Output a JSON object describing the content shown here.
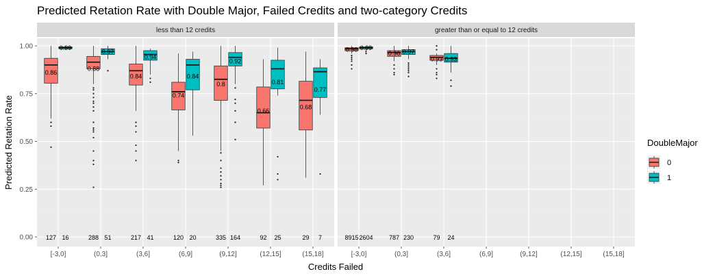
{
  "chart_data": {
    "type": "boxplot",
    "title": "Predicted Retation Rate with Double Major, Failed Credits and two-category Credits",
    "xlabel": "Credits Failed",
    "ylabel": "Predicted Retation Rate",
    "ylim": [
      0,
      1
    ],
    "yticks": [
      "0.00",
      "0.25",
      "0.50",
      "0.75",
      "1.00"
    ],
    "categories": [
      "[-3,0]",
      "(0,3]",
      "(3,6]",
      "(6,9]",
      "(9,12]",
      "(12,15]",
      "(15,18]"
    ],
    "legend": {
      "title": "DoubleMajor",
      "position": "right",
      "entries": [
        {
          "label": "0",
          "color": "#F8766D"
        },
        {
          "label": "1",
          "color": "#00BFC4"
        }
      ]
    },
    "panels": [
      {
        "label": "less than 12 credits",
        "boxes": [
          {
            "cat": 0,
            "group": 0,
            "q1": 0.805,
            "median": 0.9,
            "q3": 0.935,
            "lo": 0.62,
            "hi": 1.0,
            "mean_label": "0.86",
            "mean": 0.86,
            "count": "127",
            "outliers": [
              0.6,
              0.58,
              0.47
            ]
          },
          {
            "cat": 0,
            "group": 1,
            "q1": 0.985,
            "median": 0.99,
            "q3": 0.995,
            "lo": 0.98,
            "hi": 1.0,
            "mean_label": "0.99",
            "mean": 0.99,
            "count": "16",
            "outliers": []
          },
          {
            "cat": 1,
            "group": 0,
            "q1": 0.88,
            "median": 0.915,
            "q3": 0.945,
            "lo": 0.8,
            "hi": 1.0,
            "mean_label": "0.88",
            "mean": 0.88,
            "count": "288",
            "outliers": [
              0.78,
              0.77,
              0.75,
              0.73,
              0.71,
              0.7,
              0.68,
              0.66,
              0.6,
              0.57,
              0.56,
              0.55,
              0.52,
              0.45,
              0.4,
              0.38,
              0.26
            ]
          },
          {
            "cat": 1,
            "group": 1,
            "q1": 0.955,
            "median": 0.97,
            "q3": 0.985,
            "lo": 0.93,
            "hi": 1.0,
            "mean_label": "0.97",
            "mean": 0.97,
            "count": "51",
            "outliers": [
              0.87
            ]
          },
          {
            "cat": 2,
            "group": 0,
            "q1": 0.795,
            "median": 0.87,
            "q3": 0.905,
            "lo": 0.66,
            "hi": 1.0,
            "mean_label": "0.84",
            "mean": 0.84,
            "count": "217",
            "outliers": [
              0.6,
              0.58,
              0.55,
              0.48,
              0.45,
              0.4
            ]
          },
          {
            "cat": 2,
            "group": 1,
            "q1": 0.925,
            "median": 0.955,
            "q3": 0.975,
            "lo": 0.85,
            "hi": 0.985,
            "mean_label": "0.94",
            "mean": 0.94,
            "count": "41",
            "outliers": [
              0.83,
              0.81
            ]
          },
          {
            "cat": 3,
            "group": 0,
            "q1": 0.665,
            "median": 0.76,
            "q3": 0.81,
            "lo": 0.45,
            "hi": 0.96,
            "mean_label": "0.74",
            "mean": 0.74,
            "count": "120",
            "outliers": [
              0.4,
              0.39
            ]
          },
          {
            "cat": 3,
            "group": 1,
            "q1": 0.77,
            "median": 0.9,
            "q3": 0.93,
            "lo": 0.53,
            "hi": 0.97,
            "mean_label": "0.84",
            "mean": 0.84,
            "count": "20",
            "outliers": []
          },
          {
            "cat": 4,
            "group": 0,
            "q1": 0.715,
            "median": 0.825,
            "q3": 0.895,
            "lo": 0.45,
            "hi": 1.0,
            "mean_label": "0.8",
            "mean": 0.8,
            "count": "335",
            "outliers": [
              0.44,
              0.4,
              0.36,
              0.34,
              0.32,
              0.3,
              0.28,
              0.27,
              0.26
            ]
          },
          {
            "cat": 4,
            "group": 1,
            "q1": 0.895,
            "median": 0.94,
            "q3": 0.965,
            "lo": 0.8,
            "hi": 1.0,
            "mean_label": "0.92",
            "mean": 0.92,
            "count": "164",
            "outliers": [
              0.78,
              0.72,
              0.7,
              0.66,
              0.6,
              0.51
            ]
          },
          {
            "cat": 5,
            "group": 0,
            "q1": 0.57,
            "median": 0.65,
            "q3": 0.785,
            "lo": 0.27,
            "hi": 0.93,
            "mean_label": "0.66",
            "mean": 0.66,
            "count": "92",
            "outliers": []
          },
          {
            "cat": 5,
            "group": 1,
            "q1": 0.775,
            "median": 0.88,
            "q3": 0.925,
            "lo": 0.74,
            "hi": 0.99,
            "mean_label": "0.81",
            "mean": 0.81,
            "count": "25",
            "outliers": [
              0.42,
              0.33,
              0.3
            ]
          },
          {
            "cat": 6,
            "group": 0,
            "q1": 0.56,
            "median": 0.715,
            "q3": 0.815,
            "lo": 0.31,
            "hi": 0.97,
            "mean_label": "0.68",
            "mean": 0.68,
            "count": "29",
            "outliers": []
          },
          {
            "cat": 6,
            "group": 1,
            "q1": 0.73,
            "median": 0.865,
            "q3": 0.885,
            "lo": 0.64,
            "hi": 0.93,
            "mean_label": "0.77",
            "mean": 0.77,
            "count": "7",
            "outliers": [
              0.33
            ]
          }
        ]
      },
      {
        "label": "greater than or equal to 12 credits",
        "boxes": [
          {
            "cat": 0,
            "group": 0,
            "q1": 0.975,
            "median": 0.985,
            "q3": 0.99,
            "lo": 0.96,
            "hi": 1.0,
            "mean_label": "0.98",
            "mean": 0.98,
            "count": "8915",
            "outliers": [
              0.95,
              0.94,
              0.93,
              0.92,
              0.9,
              0.88
            ]
          },
          {
            "cat": 0,
            "group": 1,
            "q1": 0.985,
            "median": 0.99,
            "q3": 0.995,
            "lo": 0.975,
            "hi": 1.0,
            "mean_label": "0.99",
            "mean": 0.99,
            "count": "2604",
            "outliers": [
              0.97,
              0.96
            ]
          },
          {
            "cat": 1,
            "group": 0,
            "q1": 0.945,
            "median": 0.965,
            "q3": 0.975,
            "lo": 0.92,
            "hi": 1.0,
            "mean_label": "0.96",
            "mean": 0.96,
            "count": "787",
            "outliers": [
              0.9,
              0.88,
              0.86,
              0.85
            ]
          },
          {
            "cat": 1,
            "group": 1,
            "q1": 0.955,
            "median": 0.97,
            "q3": 0.98,
            "lo": 0.93,
            "hi": 1.0,
            "mean_label": "0.97",
            "mean": 0.97,
            "count": "230",
            "outliers": [
              0.91,
              0.9,
              0.89,
              0.88,
              0.87,
              0.86,
              0.84
            ]
          },
          {
            "cat": 2,
            "group": 0,
            "q1": 0.925,
            "median": 0.94,
            "q3": 0.95,
            "lo": 0.9,
            "hi": 0.96,
            "mean_label": "0.93",
            "mean": 0.93,
            "count": "79",
            "outliers": [
              0.98,
              1.0,
              0.88,
              0.86,
              0.85,
              0.83
            ]
          },
          {
            "cat": 2,
            "group": 1,
            "q1": 0.915,
            "median": 0.935,
            "q3": 0.96,
            "lo": 0.86,
            "hi": 1.0,
            "mean_label": "0.93",
            "mean": 0.93,
            "count": "24",
            "outliers": [
              0.82,
              0.79
            ]
          }
        ]
      }
    ]
  }
}
